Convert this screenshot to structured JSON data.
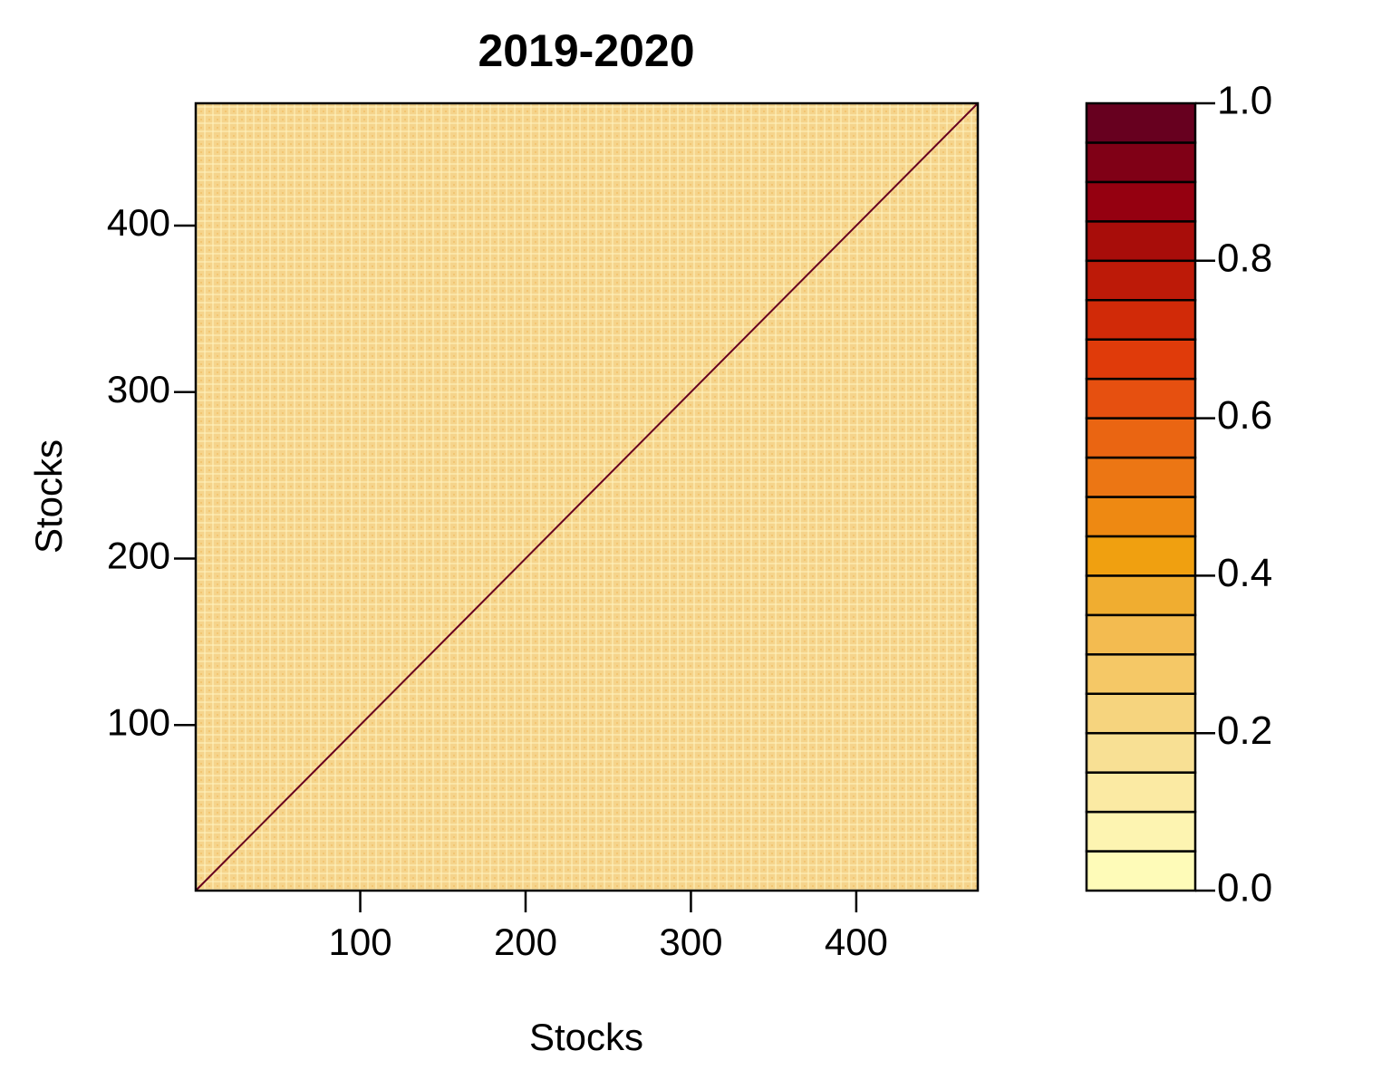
{
  "chart_data": {
    "type": "heatmap",
    "title": "2019-2020",
    "x_label": "Stocks",
    "y_label": "Stocks",
    "xlim": [
      0.5,
      473.5
    ],
    "ylim": [
      0.5,
      473.5
    ],
    "xticks": [
      100,
      200,
      300,
      400
    ],
    "yticks": [
      100,
      200,
      300,
      400
    ],
    "fill_color": "#f5d48c",
    "diagonal_value": 1,
    "colorbar": {
      "breaks": [
        0,
        0.05,
        0.1,
        0.15,
        0.2,
        0.25,
        0.3,
        0.35,
        0.4,
        0.45,
        0.5,
        0.55,
        0.6,
        0.65,
        0.7,
        0.75,
        0.8,
        0.85,
        0.9,
        0.95,
        1
      ],
      "colors": [
        "#fefbb8",
        "#fdf4b1",
        "#fbeaa3",
        "#f8e094",
        "#f6d47e",
        "#f5c866",
        "#f3bb50",
        "#f0ad30",
        "#f0a010",
        "#ee8912",
        "#ec7614",
        "#ea6512",
        "#e65010",
        "#e03b0a",
        "#d12a08",
        "#bd1a08",
        "#a80d0a",
        "#950010",
        "#800016",
        "#67001f"
      ],
      "ticks": [
        {
          "value": 0,
          "label": "0.0"
        },
        {
          "value": 0.2,
          "label": "0.2"
        },
        {
          "value": 0.4,
          "label": "0.4"
        },
        {
          "value": 0.6,
          "label": "0.6"
        },
        {
          "value": 0.8,
          "label": "0.8"
        },
        {
          "value": 1,
          "label": "1.0"
        }
      ]
    }
  }
}
